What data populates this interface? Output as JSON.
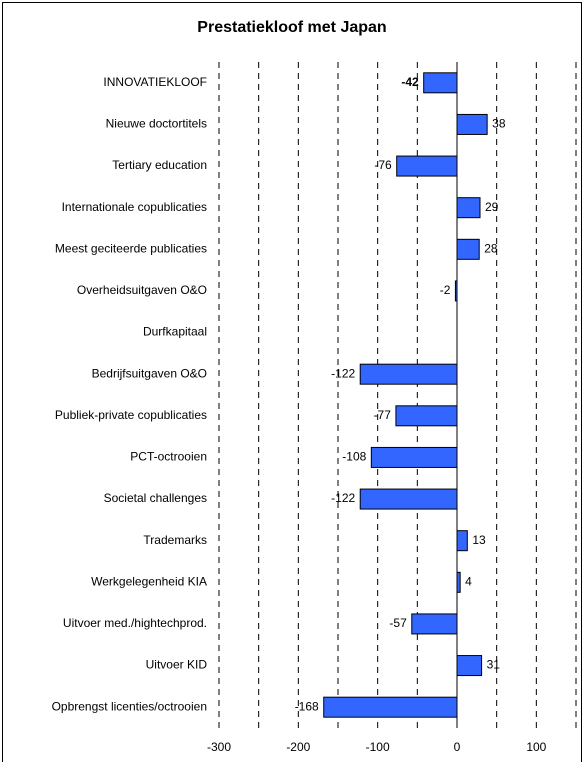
{
  "chart_data": {
    "type": "bar",
    "orientation": "horizontal",
    "title": "Prestatiekloof met Japan",
    "categories": [
      "INNOVATIEKLOOF",
      "Nieuwe doctortitels",
      "Tertiary education",
      "Internationale copublicaties",
      "Meest geciteerde publicaties",
      "Overheidsuitgaven O&O",
      "Durfkapitaal",
      "Bedrijfsuitgaven O&O",
      "Publiek-private copublicaties",
      "PCT-octrooien",
      "Societal challenges",
      "Trademarks",
      "Werkgelegenheid KIA",
      "Uitvoer med./hightechprod.",
      "Uitvoer KID",
      "Opbrengst licenties/octrooien"
    ],
    "values": [
      -42,
      38,
      -76,
      29,
      28,
      -2,
      null,
      -122,
      -77,
      -108,
      -122,
      13,
      4,
      -57,
      31,
      -168
    ],
    "color": "#3366ff",
    "xlim": [
      -300,
      150
    ],
    "xticks": [
      -300,
      -200,
      -100,
      0,
      100
    ],
    "xminorticks": [
      -250,
      -150,
      -50,
      50,
      150
    ],
    "grid": true,
    "grid_style": "dashed"
  }
}
